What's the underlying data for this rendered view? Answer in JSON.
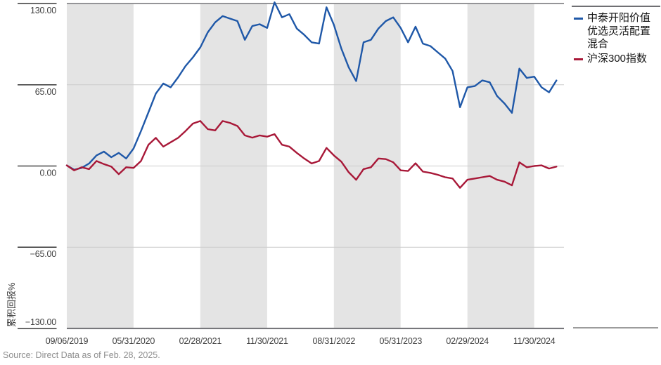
{
  "source": "Source: Direct Data as of Feb. 28, 2025.",
  "legend": {
    "items": [
      {
        "label": "中泰开阳价值优选灵活配置混合",
        "color": "#1f58a8"
      },
      {
        "label": "沪深300指数",
        "color": "#a81838"
      }
    ]
  },
  "colors": {
    "band": "#e4e4e4",
    "gridline": "#cbcbcb",
    "axis": "#6e6e72",
    "tick": "#474747",
    "fund_blue": "#1f58a8",
    "index_red": "#a81838"
  },
  "chart_data": {
    "type": "line",
    "title": "",
    "ylabel": "累积回报%",
    "ylim": [
      -130,
      130
    ],
    "y_ticks": [
      130,
      65,
      0,
      -65,
      -130
    ],
    "y_tick_labels": [
      "130.00",
      "65.00",
      "0.00",
      "−65.00",
      "−130.00"
    ],
    "grid_values": [
      65,
      0,
      -65
    ],
    "months_total": 66,
    "x_tick_months": [
      0,
      9,
      18,
      27,
      36,
      45,
      54,
      63
    ],
    "x_tick_labels": [
      "09/06/2019",
      "05/31/2020",
      "02/28/2021",
      "11/30/2021",
      "08/31/2022",
      "05/31/2023",
      "02/29/2024",
      "11/30/2024"
    ],
    "shaded_month_ranges": [
      [
        0,
        9
      ],
      [
        18,
        27
      ],
      [
        36,
        45
      ],
      [
        54,
        63
      ]
    ],
    "band_color": "#e4e4e4",
    "legend_position": "right",
    "grid": "horizontal-only",
    "series": [
      {
        "name": "中泰开阳价值优选灵活配置混合",
        "color": "#1f58a8",
        "values": [
          0.5,
          -3,
          -1.5,
          2,
          8.5,
          11.5,
          7,
          10.5,
          6,
          14,
          28,
          43,
          58,
          66,
          63,
          71,
          80,
          87,
          95,
          107,
          115,
          120,
          118,
          116,
          101,
          112,
          113.5,
          110.5,
          131,
          119,
          121.5,
          110,
          105,
          99,
          98,
          127,
          113,
          94,
          79,
          68,
          99,
          101,
          110,
          116,
          119,
          110.5,
          99,
          111.5,
          98,
          96,
          91,
          86,
          76,
          47,
          63,
          64,
          68.5,
          67,
          56,
          50,
          42.5,
          78,
          70.5,
          71.5,
          63,
          59,
          68.5
        ]
      },
      {
        "name": "沪深300指数",
        "color": "#a81838",
        "values": [
          0.5,
          -3.5,
          -1,
          -2.5,
          4,
          1.5,
          -0.5,
          -6.5,
          -1,
          -1.5,
          4,
          17,
          22.5,
          15.5,
          19,
          22.5,
          28,
          34,
          36,
          29.5,
          28.5,
          36,
          34.5,
          32,
          24.5,
          22.7,
          24.5,
          23.5,
          25.5,
          17,
          15.5,
          10.5,
          6,
          2,
          4,
          14.5,
          8.5,
          3.5,
          -5,
          -11,
          -2.5,
          -1,
          6,
          5.5,
          3,
          -3.5,
          -4,
          2.2,
          -4.5,
          -5.5,
          -7,
          -9,
          -10,
          -17.5,
          -11,
          -10,
          -9,
          -8,
          -11,
          -12.5,
          -15.5,
          3,
          -1,
          0,
          0.5,
          -2,
          -0.5
        ]
      }
    ]
  }
}
